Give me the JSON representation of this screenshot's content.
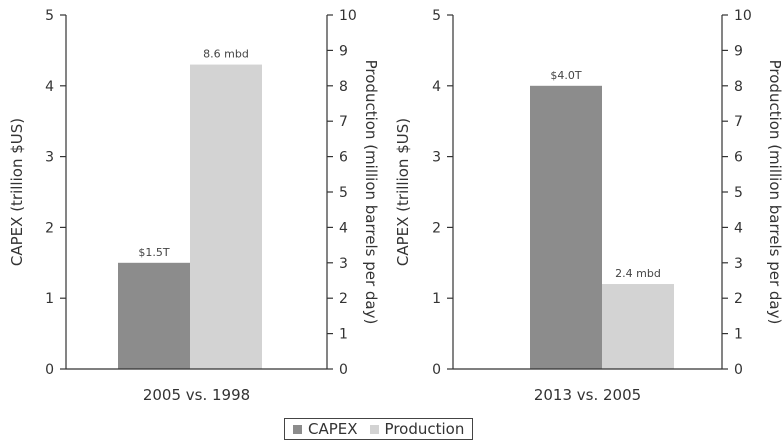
{
  "colors": {
    "capex": "#8c8c8c",
    "production": "#d3d3d3",
    "axis": "#333333"
  },
  "legend": {
    "capex_label": "CAPEX",
    "production_label": "Production",
    "position": "bottom-center"
  },
  "chart_data": [
    {
      "type": "bar",
      "categories": [
        "2005 vs. 1998"
      ],
      "series": [
        {
          "name": "CAPEX",
          "axis": "left",
          "values": [
            1.5
          ],
          "data_label": "$1.5T"
        },
        {
          "name": "Production",
          "axis": "right",
          "values": [
            8.6
          ],
          "data_label": "8.6 mbd"
        }
      ],
      "ylabel": "CAPEX (trillion $US)",
      "ylim": [
        0,
        5
      ],
      "yticks": [
        "0",
        "1",
        "2",
        "3",
        "4",
        "5"
      ],
      "y2label": "Production (million barrels per day)",
      "y2lim": [
        0,
        10
      ],
      "y2ticks": [
        "0",
        "1",
        "2",
        "3",
        "4",
        "5",
        "6",
        "7",
        "8",
        "9",
        "10"
      ],
      "grid": false
    },
    {
      "type": "bar",
      "categories": [
        "2013 vs. 2005"
      ],
      "series": [
        {
          "name": "CAPEX",
          "axis": "left",
          "values": [
            4.0
          ],
          "data_label": "$4.0T"
        },
        {
          "name": "Production",
          "axis": "right",
          "values": [
            2.4
          ],
          "data_label": "2.4 mbd"
        }
      ],
      "ylabel": "CAPEX (trillion $US)",
      "ylim": [
        0,
        5
      ],
      "yticks": [
        "0",
        "1",
        "2",
        "3",
        "4",
        "5"
      ],
      "y2label": "Production (million barrels per day)",
      "y2lim": [
        0,
        10
      ],
      "y2ticks": [
        "0",
        "1",
        "2",
        "3",
        "4",
        "5",
        "6",
        "7",
        "8",
        "9",
        "10"
      ],
      "grid": false
    }
  ]
}
